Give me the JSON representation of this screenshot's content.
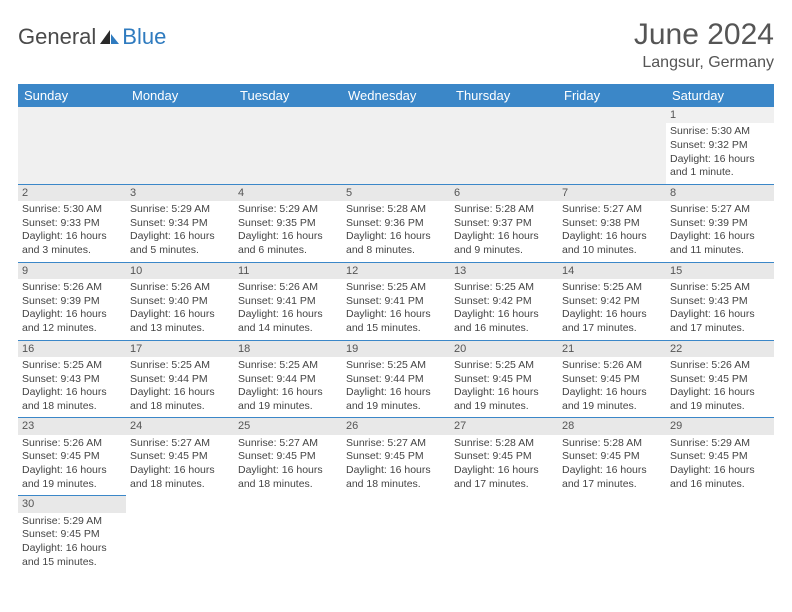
{
  "brand": {
    "general": "General",
    "blue": "Blue"
  },
  "title": "June 2024",
  "location": "Langsur, Germany",
  "colors": {
    "header_bg": "#3b87c8",
    "header_text": "#ffffff",
    "daynum_bg": "#e8e8e8",
    "cell_border": "#3b87c8",
    "logo_gray": "#4a4a4a",
    "logo_blue": "#2f7bbf"
  },
  "day_headers": [
    "Sunday",
    "Monday",
    "Tuesday",
    "Wednesday",
    "Thursday",
    "Friday",
    "Saturday"
  ],
  "weeks": [
    [
      null,
      null,
      null,
      null,
      null,
      null,
      {
        "n": "1",
        "sr": "Sunrise: 5:30 AM",
        "ss": "Sunset: 9:32 PM",
        "dl": "Daylight: 16 hours and 1 minute."
      }
    ],
    [
      {
        "n": "2",
        "sr": "Sunrise: 5:30 AM",
        "ss": "Sunset: 9:33 PM",
        "dl": "Daylight: 16 hours and 3 minutes."
      },
      {
        "n": "3",
        "sr": "Sunrise: 5:29 AM",
        "ss": "Sunset: 9:34 PM",
        "dl": "Daylight: 16 hours and 5 minutes."
      },
      {
        "n": "4",
        "sr": "Sunrise: 5:29 AM",
        "ss": "Sunset: 9:35 PM",
        "dl": "Daylight: 16 hours and 6 minutes."
      },
      {
        "n": "5",
        "sr": "Sunrise: 5:28 AM",
        "ss": "Sunset: 9:36 PM",
        "dl": "Daylight: 16 hours and 8 minutes."
      },
      {
        "n": "6",
        "sr": "Sunrise: 5:28 AM",
        "ss": "Sunset: 9:37 PM",
        "dl": "Daylight: 16 hours and 9 minutes."
      },
      {
        "n": "7",
        "sr": "Sunrise: 5:27 AM",
        "ss": "Sunset: 9:38 PM",
        "dl": "Daylight: 16 hours and 10 minutes."
      },
      {
        "n": "8",
        "sr": "Sunrise: 5:27 AM",
        "ss": "Sunset: 9:39 PM",
        "dl": "Daylight: 16 hours and 11 minutes."
      }
    ],
    [
      {
        "n": "9",
        "sr": "Sunrise: 5:26 AM",
        "ss": "Sunset: 9:39 PM",
        "dl": "Daylight: 16 hours and 12 minutes."
      },
      {
        "n": "10",
        "sr": "Sunrise: 5:26 AM",
        "ss": "Sunset: 9:40 PM",
        "dl": "Daylight: 16 hours and 13 minutes."
      },
      {
        "n": "11",
        "sr": "Sunrise: 5:26 AM",
        "ss": "Sunset: 9:41 PM",
        "dl": "Daylight: 16 hours and 14 minutes."
      },
      {
        "n": "12",
        "sr": "Sunrise: 5:25 AM",
        "ss": "Sunset: 9:41 PM",
        "dl": "Daylight: 16 hours and 15 minutes."
      },
      {
        "n": "13",
        "sr": "Sunrise: 5:25 AM",
        "ss": "Sunset: 9:42 PM",
        "dl": "Daylight: 16 hours and 16 minutes."
      },
      {
        "n": "14",
        "sr": "Sunrise: 5:25 AM",
        "ss": "Sunset: 9:42 PM",
        "dl": "Daylight: 16 hours and 17 minutes."
      },
      {
        "n": "15",
        "sr": "Sunrise: 5:25 AM",
        "ss": "Sunset: 9:43 PM",
        "dl": "Daylight: 16 hours and 17 minutes."
      }
    ],
    [
      {
        "n": "16",
        "sr": "Sunrise: 5:25 AM",
        "ss": "Sunset: 9:43 PM",
        "dl": "Daylight: 16 hours and 18 minutes."
      },
      {
        "n": "17",
        "sr": "Sunrise: 5:25 AM",
        "ss": "Sunset: 9:44 PM",
        "dl": "Daylight: 16 hours and 18 minutes."
      },
      {
        "n": "18",
        "sr": "Sunrise: 5:25 AM",
        "ss": "Sunset: 9:44 PM",
        "dl": "Daylight: 16 hours and 19 minutes."
      },
      {
        "n": "19",
        "sr": "Sunrise: 5:25 AM",
        "ss": "Sunset: 9:44 PM",
        "dl": "Daylight: 16 hours and 19 minutes."
      },
      {
        "n": "20",
        "sr": "Sunrise: 5:25 AM",
        "ss": "Sunset: 9:45 PM",
        "dl": "Daylight: 16 hours and 19 minutes."
      },
      {
        "n": "21",
        "sr": "Sunrise: 5:26 AM",
        "ss": "Sunset: 9:45 PM",
        "dl": "Daylight: 16 hours and 19 minutes."
      },
      {
        "n": "22",
        "sr": "Sunrise: 5:26 AM",
        "ss": "Sunset: 9:45 PM",
        "dl": "Daylight: 16 hours and 19 minutes."
      }
    ],
    [
      {
        "n": "23",
        "sr": "Sunrise: 5:26 AM",
        "ss": "Sunset: 9:45 PM",
        "dl": "Daylight: 16 hours and 19 minutes."
      },
      {
        "n": "24",
        "sr": "Sunrise: 5:27 AM",
        "ss": "Sunset: 9:45 PM",
        "dl": "Daylight: 16 hours and 18 minutes."
      },
      {
        "n": "25",
        "sr": "Sunrise: 5:27 AM",
        "ss": "Sunset: 9:45 PM",
        "dl": "Daylight: 16 hours and 18 minutes."
      },
      {
        "n": "26",
        "sr": "Sunrise: 5:27 AM",
        "ss": "Sunset: 9:45 PM",
        "dl": "Daylight: 16 hours and 18 minutes."
      },
      {
        "n": "27",
        "sr": "Sunrise: 5:28 AM",
        "ss": "Sunset: 9:45 PM",
        "dl": "Daylight: 16 hours and 17 minutes."
      },
      {
        "n": "28",
        "sr": "Sunrise: 5:28 AM",
        "ss": "Sunset: 9:45 PM",
        "dl": "Daylight: 16 hours and 17 minutes."
      },
      {
        "n": "29",
        "sr": "Sunrise: 5:29 AM",
        "ss": "Sunset: 9:45 PM",
        "dl": "Daylight: 16 hours and 16 minutes."
      }
    ],
    [
      {
        "n": "30",
        "sr": "Sunrise: 5:29 AM",
        "ss": "Sunset: 9:45 PM",
        "dl": "Daylight: 16 hours and 15 minutes."
      },
      null,
      null,
      null,
      null,
      null,
      null
    ]
  ]
}
